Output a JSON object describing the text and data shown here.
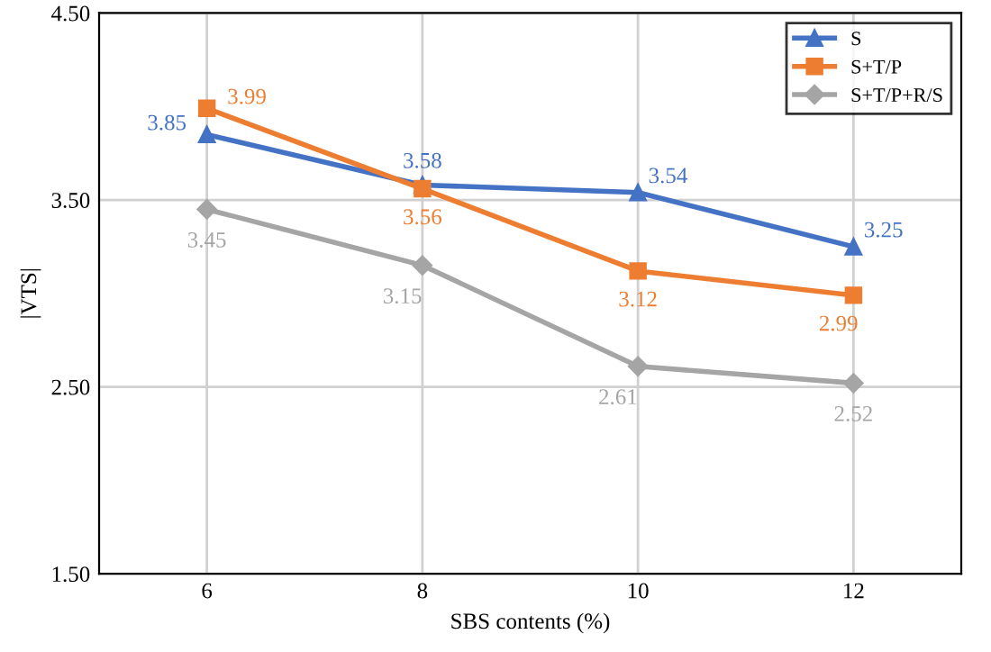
{
  "chart_data": {
    "type": "line",
    "xlabel": "SBS contents (%)",
    "ylabel": "|VTS|",
    "categories": [
      "6",
      "8",
      "10",
      "12"
    ],
    "series": [
      {
        "name": "S",
        "color": "#4472c4",
        "marker": "triangle",
        "values": [
          3.85,
          3.58,
          3.54,
          3.25
        ]
      },
      {
        "name": "S+T/P",
        "color": "#ed7d31",
        "marker": "square",
        "values": [
          3.99,
          3.56,
          3.12,
          2.99
        ]
      },
      {
        "name": "S+T/P+R/S",
        "color": "#a5a5a5",
        "marker": "diamond",
        "values": [
          3.45,
          3.15,
          2.61,
          2.52
        ]
      }
    ],
    "ylim": [
      1.5,
      4.5
    ],
    "yticks": [
      {
        "value": 1.5,
        "label": "1.50"
      },
      {
        "value": 2.5,
        "label": "2.50"
      },
      {
        "value": 3.5,
        "label": "3.50"
      },
      {
        "value": 4.5,
        "label": "4.50"
      }
    ],
    "grid": true,
    "legend": "top right",
    "data_labels": true,
    "line_style": "solid"
  }
}
